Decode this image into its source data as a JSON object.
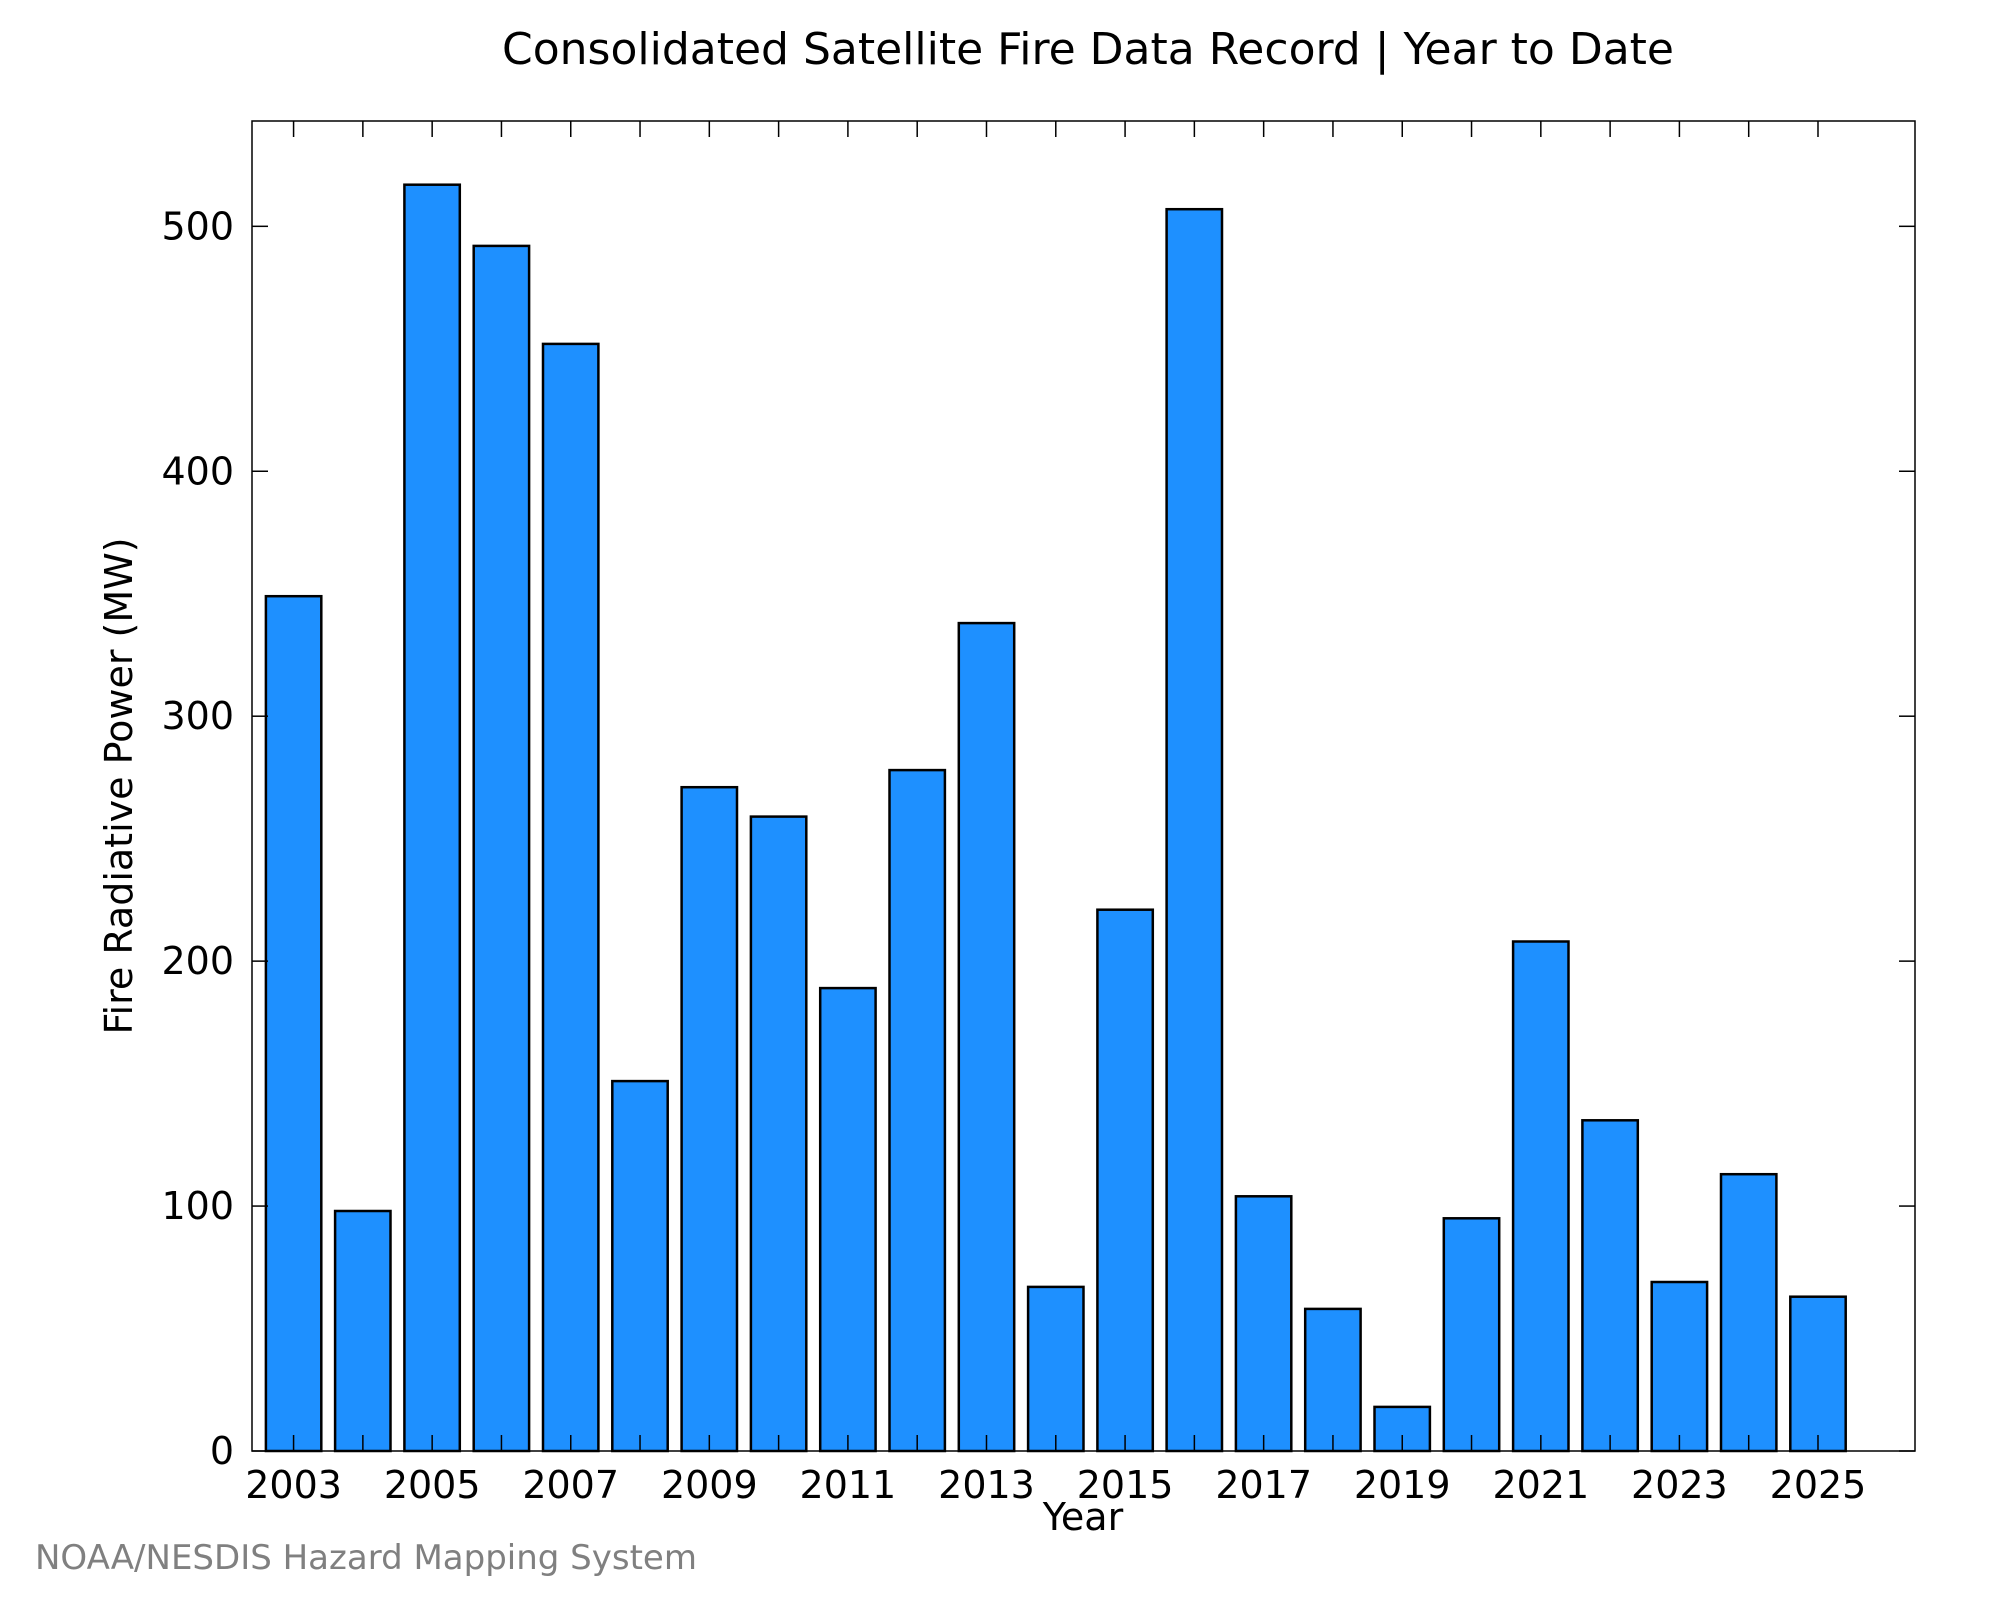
{
  "chart_data": {
    "type": "bar",
    "title": "Consolidated Satellite Fire Data Record | Year to Date",
    "xlabel": "Year",
    "ylabel": "Fire Radiative Power (MW)",
    "categories": [
      "2003",
      "2004",
      "2005",
      "2006",
      "2007",
      "2008",
      "2009",
      "2010",
      "2011",
      "2012",
      "2013",
      "2014",
      "2015",
      "2016",
      "2017",
      "2018",
      "2019",
      "2020",
      "2021",
      "2022",
      "2023",
      "2024",
      "2025"
    ],
    "values": [
      349,
      98,
      517,
      492,
      452,
      151,
      271,
      259,
      189,
      278,
      338,
      67,
      221,
      507,
      104,
      58,
      18,
      95,
      208,
      135,
      69,
      113,
      63
    ],
    "x_tick_labels": [
      "2003",
      "2005",
      "2007",
      "2009",
      "2011",
      "2013",
      "2015",
      "2017",
      "2019",
      "2021",
      "2023",
      "2025"
    ],
    "y_tick_labels": [
      "0",
      "100",
      "200",
      "300",
      "400",
      "500"
    ],
    "ylim": [
      0,
      543
    ],
    "grid": false,
    "bar_color": "#1e90ff",
    "bar_edge_color": "#000000"
  },
  "credit": "NOAA/NESDIS Hazard Mapping System"
}
